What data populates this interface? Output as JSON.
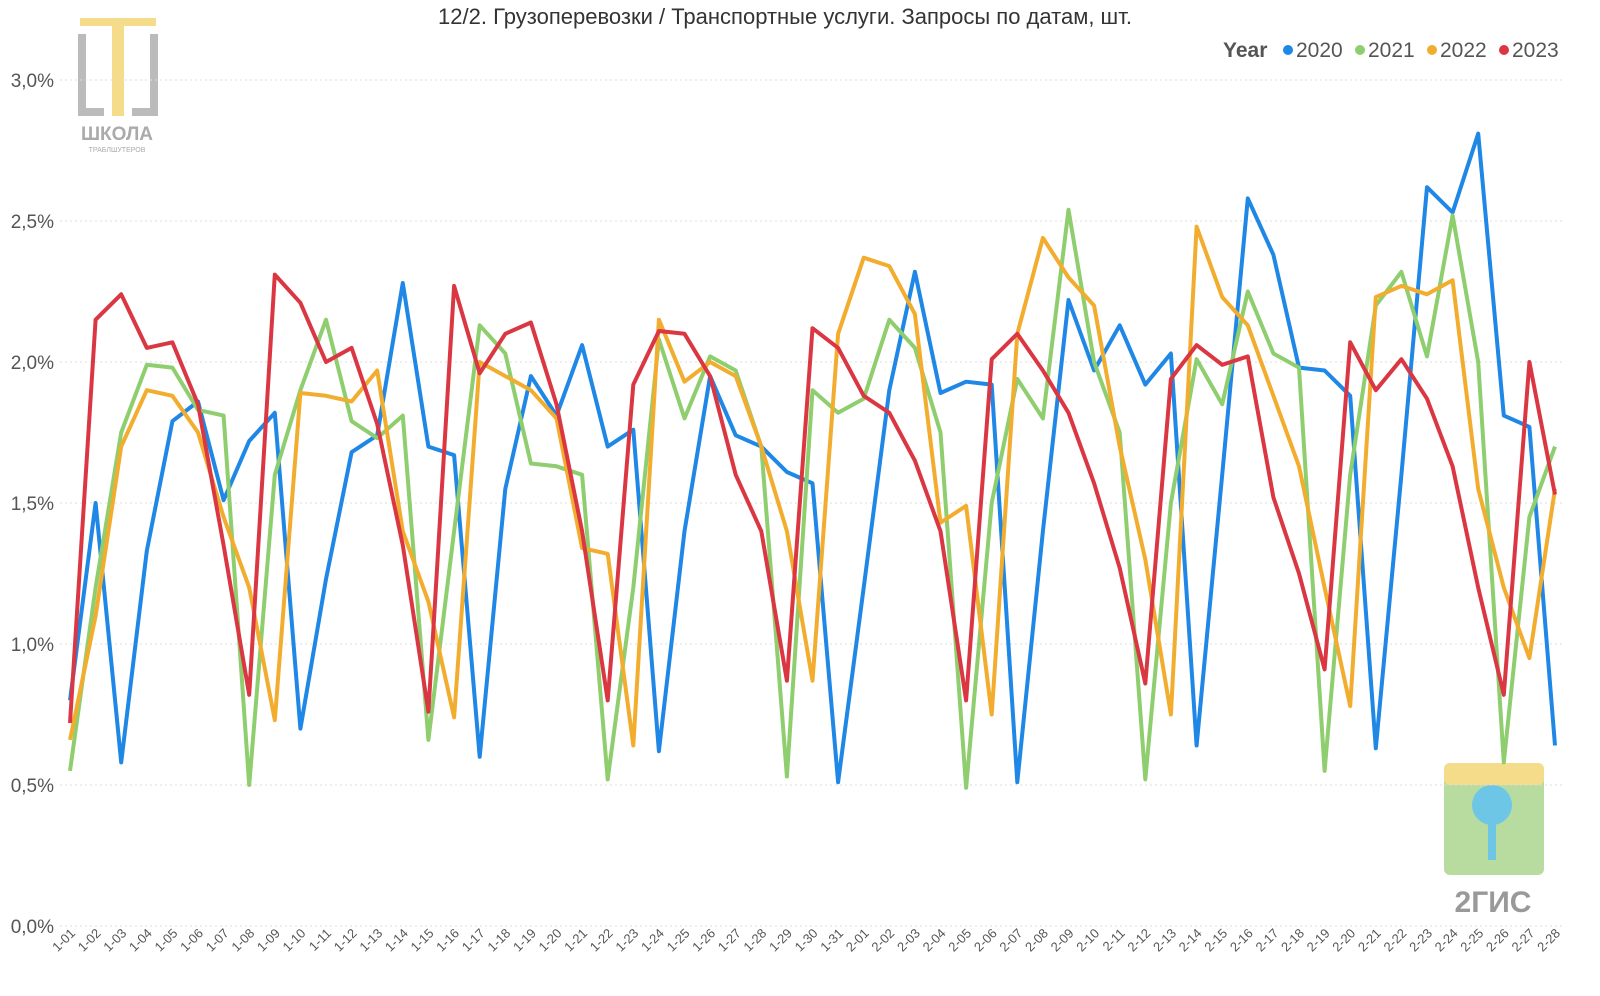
{
  "chart_data": {
    "type": "line",
    "title": "12/2. Грузоперевозки / Транспортные услуги. Запросы по датам, шт.",
    "legend_title": "Year",
    "legend_position": "top-right",
    "grid": true,
    "logos": {
      "school": "ШКОЛА",
      "school_sub": "ТРАБЛШУТЕРОВ",
      "brand": "2ГИС"
    },
    "categories": [
      "1-01",
      "1-02",
      "1-03",
      "1-04",
      "1-05",
      "1-06",
      "1-07",
      "1-08",
      "1-09",
      "1-10",
      "1-11",
      "1-12",
      "1-13",
      "1-14",
      "1-15",
      "1-16",
      "1-17",
      "1-18",
      "1-19",
      "1-20",
      "1-21",
      "1-22",
      "1-23",
      "1-24",
      "1-25",
      "1-26",
      "1-27",
      "1-28",
      "1-29",
      "1-30",
      "1-31",
      "2-01",
      "2-02",
      "2-03",
      "2-04",
      "2-05",
      "2-06",
      "2-07",
      "2-08",
      "2-09",
      "2-10",
      "2-11",
      "2-12",
      "2-13",
      "2-14",
      "2-15",
      "2-16",
      "2-17",
      "2-18",
      "2-19",
      "2-20",
      "2-21",
      "2-22",
      "2-23",
      "2-24",
      "2-25",
      "2-26",
      "2-27",
      "2-28"
    ],
    "ylim": [
      0,
      3.2
    ],
    "yticks": [
      {
        "value": 0,
        "label": "0,0%"
      },
      {
        "value": 0.5,
        "label": "0,5%"
      },
      {
        "value": 1,
        "label": "1,0%"
      },
      {
        "value": 1.5,
        "label": "1,5%"
      },
      {
        "value": 2,
        "label": "2,0%"
      },
      {
        "value": 2.5,
        "label": "2,5%"
      },
      {
        "value": 3,
        "label": "3,0%"
      }
    ],
    "series": [
      {
        "name": "2020",
        "color": "#1f87e5",
        "values": [
          0.8,
          1.5,
          0.58,
          1.33,
          1.79,
          1.86,
          1.51,
          1.72,
          1.82,
          0.7,
          1.23,
          1.68,
          1.74,
          2.28,
          1.7,
          1.67,
          0.6,
          1.55,
          1.95,
          1.81,
          2.06,
          1.7,
          1.76,
          0.62,
          1.4,
          1.95,
          1.74,
          1.7,
          1.61,
          1.57,
          0.51,
          1.2,
          1.9,
          2.32,
          1.89,
          1.93,
          1.92,
          0.51,
          1.4,
          2.22,
          1.97,
          2.13,
          1.92,
          2.03,
          0.64,
          1.6,
          2.58,
          2.38,
          1.98,
          1.97,
          1.88,
          0.63,
          1.6,
          2.62,
          2.53,
          2.81,
          1.81,
          1.77,
          0.64
        ]
      },
      {
        "name": "2021",
        "color": "#8fce6e",
        "values": [
          0.55,
          1.2,
          1.75,
          1.99,
          1.98,
          1.83,
          1.81,
          0.5,
          1.6,
          1.9,
          2.15,
          1.79,
          1.73,
          1.81,
          0.66,
          1.4,
          2.13,
          2.03,
          1.64,
          1.63,
          1.6,
          0.52,
          1.2,
          2.08,
          1.8,
          2.02,
          1.97,
          1.7,
          0.53,
          1.9,
          1.82,
          1.87,
          2.15,
          2.05,
          1.75,
          0.49,
          1.5,
          1.94,
          1.8,
          2.54,
          2.0,
          1.75,
          0.52,
          1.5,
          2.01,
          1.85,
          2.25,
          2.03,
          1.98,
          0.55,
          1.6,
          2.2,
          2.32,
          2.02,
          2.52,
          2.0,
          0.58,
          1.45,
          1.7
        ]
      },
      {
        "name": "2022",
        "color": "#f2ad2f",
        "values": [
          0.66,
          1.1,
          1.7,
          1.9,
          1.88,
          1.75,
          1.45,
          1.2,
          0.73,
          1.89,
          1.88,
          1.86,
          1.97,
          1.4,
          1.15,
          0.74,
          2.0,
          1.95,
          1.9,
          1.8,
          1.34,
          1.32,
          0.64,
          2.15,
          1.93,
          2.0,
          1.95,
          1.7,
          1.4,
          0.87,
          2.1,
          2.37,
          2.34,
          2.17,
          1.43,
          1.49,
          0.75,
          2.1,
          2.44,
          2.3,
          2.2,
          1.7,
          1.3,
          0.75,
          2.48,
          2.23,
          2.13,
          1.88,
          1.63,
          1.2,
          0.78,
          2.23,
          2.27,
          2.24,
          2.29,
          1.55,
          1.2,
          0.95,
          1.55
        ]
      },
      {
        "name": "2023",
        "color": "#da3743",
        "values": [
          0.72,
          2.15,
          2.24,
          2.05,
          2.07,
          1.85,
          1.35,
          0.82,
          2.31,
          2.21,
          2.0,
          2.05,
          1.78,
          1.35,
          0.76,
          2.27,
          1.96,
          2.1,
          2.14,
          1.85,
          1.4,
          0.8,
          1.92,
          2.11,
          2.1,
          1.95,
          1.6,
          1.4,
          0.87,
          2.12,
          2.05,
          1.88,
          1.82,
          1.65,
          1.4,
          0.8,
          2.01,
          2.1,
          1.97,
          1.82,
          1.57,
          1.27,
          0.86,
          1.94,
          2.06,
          1.99,
          2.02,
          1.52,
          1.25,
          0.91,
          2.07,
          1.9,
          2.01,
          1.87,
          1.63,
          1.2,
          0.82,
          2.0,
          1.53
        ]
      }
    ]
  }
}
